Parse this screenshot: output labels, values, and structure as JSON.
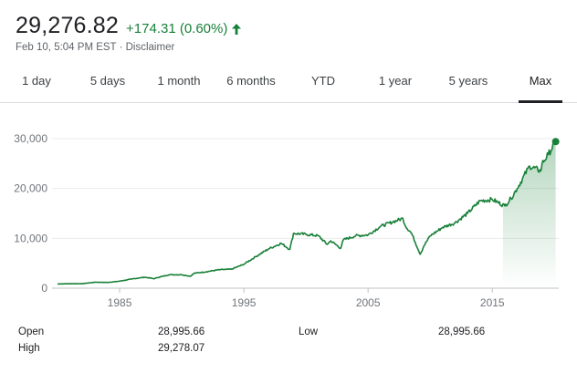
{
  "quote": {
    "price": "29,276.82",
    "change": "+174.31 (0.60%)",
    "timestamp": "Feb 10, 5:04 PM EST",
    "separator": "·",
    "disclaimer": "Disclaimer",
    "trend_icon": "arrow-up-icon",
    "accent_color": "#188038"
  },
  "tabs": [
    {
      "label": "1 day"
    },
    {
      "label": "5 days"
    },
    {
      "label": "1 month"
    },
    {
      "label": "6 months"
    },
    {
      "label": "YTD"
    },
    {
      "label": "1 year"
    },
    {
      "label": "5 years"
    },
    {
      "label": "Max",
      "active": true
    }
  ],
  "stats": {
    "open_label": "Open",
    "open_value": "28,995.66",
    "high_label": "High",
    "high_value": "29,278.07",
    "low_label": "Low",
    "low_value": "28,995.66"
  },
  "chart_data": {
    "type": "area",
    "xlim": [
      1980,
      2020.2
    ],
    "ylim": [
      0,
      30000
    ],
    "x_ticks": [
      1985,
      1995,
      2005,
      2015
    ],
    "y_ticks": [
      0,
      10000,
      20000,
      30000
    ],
    "y_tick_labels": [
      "0",
      "10,000",
      "20,000",
      "30,000"
    ],
    "grid": true,
    "line_color": "#188038",
    "series": [
      {
        "x": [
          1980,
          1981,
          1982,
          1983,
          1984,
          1985,
          1986,
          1987,
          1987.8,
          1988,
          1989,
          1990,
          1990.7,
          1991,
          1992,
          1993,
          1994,
          1995,
          1996,
          1997,
          1998,
          1998.7,
          1999,
          2000,
          2001,
          2001.7,
          2002,
          2002.8,
          2003,
          2004,
          2005,
          2006,
          2007,
          2007.8,
          2008,
          2008.5,
          2009.2,
          2009.5,
          2010,
          2011,
          2012,
          2013,
          2014,
          2015,
          2016,
          2016.5,
          2017,
          2018,
          2018.9,
          2019,
          2019.5,
          2020.1
        ],
        "y": [
          850,
          900,
          900,
          1200,
          1150,
          1400,
          1850,
          2200,
          1900,
          2100,
          2700,
          2700,
          2400,
          3000,
          3300,
          3700,
          3800,
          4800,
          6400,
          7900,
          9000,
          7800,
          11000,
          10800,
          10500,
          8800,
          9500,
          8000,
          9700,
          10500,
          10700,
          12400,
          13300,
          14000,
          12500,
          11000,
          6800,
          8500,
          10500,
          12200,
          13100,
          15000,
          17500,
          17800,
          16500,
          18000,
          20000,
          24500,
          23500,
          25000,
          26800,
          29400
        ]
      }
    ]
  }
}
